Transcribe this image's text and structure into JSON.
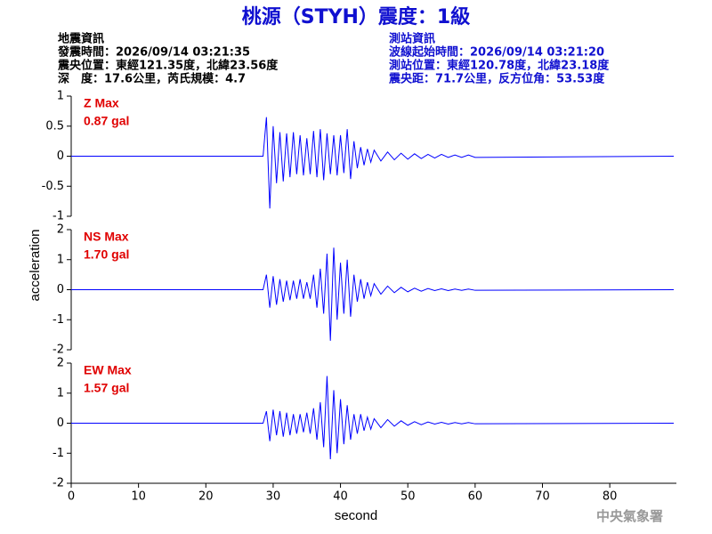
{
  "title": "桃源（STYH）震度：1級",
  "info_left": [
    "地震資訊",
    "發震時間：2026/09/14 03:21:35",
    "震央位置：東經121.35度，北緯23.56度",
    "深　度：17.6公里，芮氏規模：4.7"
  ],
  "info_right": [
    "測站資訊",
    "波線起始時間：2026/09/14 03:21:20",
    "測站位置：東經120.78度，北緯23.18度",
    "震央距：71.7公里，反方位角：53.53度"
  ],
  "ylabel": "acceleration",
  "xlabel": "second",
  "footer": "中央氣象署",
  "chart_data": [
    {
      "type": "line",
      "annotation": [
        "Z Max",
        "0.87 gal"
      ],
      "xlim": [
        0,
        89.5
      ],
      "ylim": [
        -1,
        1
      ],
      "yticks": [
        -1,
        -0.5,
        0,
        0.5,
        1
      ],
      "x": [
        0,
        28.5,
        29,
        29.5,
        30,
        30.5,
        31,
        31.5,
        32,
        32.5,
        33,
        33.5,
        34,
        34.5,
        35,
        35.5,
        36,
        36.5,
        37,
        37.5,
        38,
        38.5,
        39,
        39.5,
        40,
        40.5,
        41,
        41.5,
        42,
        42.5,
        43,
        43.5,
        44,
        44.5,
        45,
        46,
        47,
        48,
        49,
        50,
        51,
        52,
        53,
        54,
        55,
        56,
        57,
        58,
        59,
        60,
        89.5
      ],
      "series": [
        {
          "color": "#0000ff",
          "values": [
            0,
            0,
            0.65,
            -0.87,
            0.5,
            -0.45,
            0.4,
            -0.42,
            0.38,
            -0.35,
            0.4,
            -0.3,
            0.35,
            -0.32,
            0.3,
            -0.3,
            0.42,
            -0.35,
            0.45,
            -0.4,
            0.38,
            -0.3,
            0.35,
            -0.32,
            0.35,
            -0.28,
            0.45,
            -0.38,
            0.25,
            -0.2,
            0.15,
            -0.15,
            0.12,
            -0.1,
            0.1,
            -0.08,
            0.07,
            -0.06,
            0.05,
            -0.05,
            0.04,
            -0.04,
            0.03,
            -0.03,
            0.03,
            -0.02,
            0.02,
            -0.02,
            0.02,
            -0.02,
            0
          ]
        }
      ]
    },
    {
      "type": "line",
      "annotation": [
        "NS Max",
        "1.70 gal"
      ],
      "xlim": [
        0,
        89.5
      ],
      "ylim": [
        -2,
        2
      ],
      "yticks": [
        -2,
        -1,
        0,
        1,
        2
      ],
      "x": [
        0,
        28.5,
        29,
        29.5,
        30,
        30.5,
        31,
        31.5,
        32,
        32.5,
        33,
        33.5,
        34,
        34.5,
        35,
        35.5,
        36,
        36.5,
        37,
        37.5,
        38,
        38.5,
        39,
        39.5,
        40,
        40.5,
        41,
        41.5,
        42,
        42.5,
        43,
        43.5,
        44,
        44.5,
        45,
        46,
        47,
        48,
        49,
        50,
        51,
        52,
        53,
        54,
        55,
        56,
        57,
        58,
        59,
        60,
        89.5
      ],
      "series": [
        {
          "color": "#0000ff",
          "values": [
            0,
            0,
            0.5,
            -0.6,
            0.45,
            -0.5,
            0.35,
            -0.4,
            0.3,
            -0.35,
            0.3,
            -0.3,
            0.35,
            -0.3,
            0.25,
            -0.3,
            0.5,
            -0.6,
            0.7,
            -0.8,
            1.2,
            -1.7,
            1.4,
            -1.0,
            0.9,
            -0.8,
            1.0,
            -0.9,
            0.5,
            -0.4,
            0.35,
            -0.3,
            0.25,
            -0.2,
            0.2,
            -0.15,
            0.12,
            -0.1,
            0.08,
            -0.07,
            0.05,
            -0.05,
            0.04,
            -0.03,
            0.03,
            -0.03,
            0.02,
            -0.02,
            0.02,
            -0.02,
            0
          ]
        }
      ]
    },
    {
      "type": "line",
      "annotation": [
        "EW Max",
        "1.57 gal"
      ],
      "xlim": [
        0,
        89.5
      ],
      "ylim": [
        -2,
        2
      ],
      "yticks": [
        -2,
        -1,
        0,
        1,
        2
      ],
      "xticks": [
        0,
        10,
        20,
        30,
        40,
        50,
        60,
        70,
        80
      ],
      "x": [
        0,
        28.5,
        29,
        29.5,
        30,
        30.5,
        31,
        31.5,
        32,
        32.5,
        33,
        33.5,
        34,
        34.5,
        35,
        35.5,
        36,
        36.5,
        37,
        37.5,
        38,
        38.5,
        39,
        39.5,
        40,
        40.5,
        41,
        41.5,
        42,
        42.5,
        43,
        43.5,
        44,
        44.5,
        45,
        46,
        47,
        48,
        49,
        50,
        51,
        52,
        53,
        54,
        55,
        56,
        57,
        58,
        59,
        60,
        89.5
      ],
      "series": [
        {
          "color": "#0000ff",
          "values": [
            0,
            0,
            0.4,
            -0.6,
            0.45,
            -0.4,
            0.4,
            -0.45,
            0.35,
            -0.4,
            0.3,
            -0.35,
            0.3,
            -0.3,
            0.35,
            -0.35,
            0.5,
            -0.55,
            0.7,
            -0.8,
            1.57,
            -1.2,
            1.1,
            -1.0,
            0.8,
            -0.7,
            0.6,
            -0.55,
            0.3,
            -0.35,
            0.3,
            -0.25,
            0.2,
            -0.2,
            0.15,
            -0.15,
            0.12,
            -0.1,
            0.08,
            -0.07,
            0.05,
            -0.05,
            0.04,
            -0.03,
            0.03,
            -0.03,
            0.02,
            -0.02,
            0.02,
            -0.02,
            0
          ]
        }
      ]
    }
  ]
}
